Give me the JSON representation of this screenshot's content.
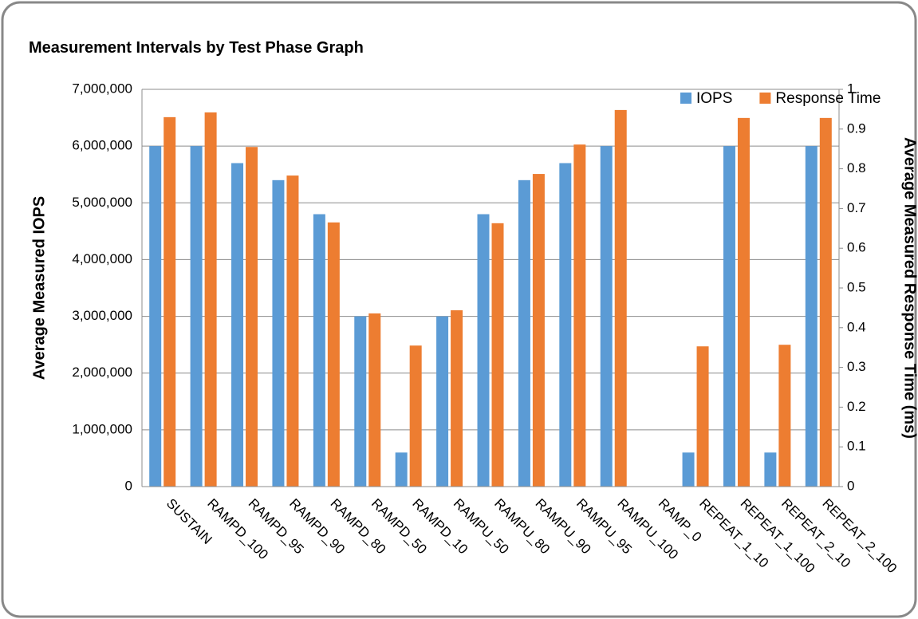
{
  "chart_data": {
    "type": "bar",
    "title": "Measurement Intervals by Test Phase Graph",
    "y_label": "Average Measured IOPS",
    "y2_label": "Average Measured Response Time (ms)",
    "categories": [
      "SUSTAIN",
      "RAMPD_100",
      "RAMPD_95",
      "RAMPD_90",
      "RAMPD_80",
      "RAMPD_50",
      "RAMPD_10",
      "RAMPU_50",
      "RAMPU_80",
      "RAMPU_90",
      "RAMPU_95",
      "RAMPU_100",
      "RAMP_0",
      "REPEAT_1_10",
      "REPEAT_1_100",
      "REPEAT_2_10",
      "REPEAT_2_100"
    ],
    "series": [
      {
        "name": "IOPS",
        "color": "#5b9bd5",
        "axis": "y",
        "values": [
          6000000,
          6000000,
          5700000,
          5400000,
          4800000,
          3000000,
          600000,
          3000000,
          4800000,
          5400000,
          5700000,
          6000000,
          0,
          600000,
          6000000,
          600000,
          6000000
        ]
      },
      {
        "name": "Response Time",
        "color": "#ed7d31",
        "axis": "y2",
        "values": [
          0.93,
          0.942,
          0.855,
          0.783,
          0.665,
          0.436,
          0.355,
          0.444,
          0.663,
          0.787,
          0.861,
          0.948,
          0,
          0.353,
          0.928,
          0.357,
          0.928
        ]
      }
    ],
    "ylim": [
      0,
      7000000
    ],
    "yticks": [
      0,
      {
        "value": 1000000,
        "label": "1,000,000"
      },
      {
        "value": 2000000,
        "label": "2,000,000"
      },
      {
        "value": 3000000,
        "label": "3,000,000"
      },
      {
        "value": 4000000,
        "label": "4,000,000"
      },
      {
        "value": 5000000,
        "label": "5,000,000"
      },
      {
        "value": 6000000,
        "label": "6,000,000"
      },
      {
        "value": 7000000,
        "label": "7,000,000"
      }
    ],
    "y2lim": [
      0,
      1
    ],
    "y2ticks": [
      0,
      0.1,
      0.2,
      0.3,
      0.4,
      0.5,
      0.6,
      0.7,
      0.8,
      0.9,
      1
    ],
    "grid": true,
    "legend": "top-right"
  }
}
